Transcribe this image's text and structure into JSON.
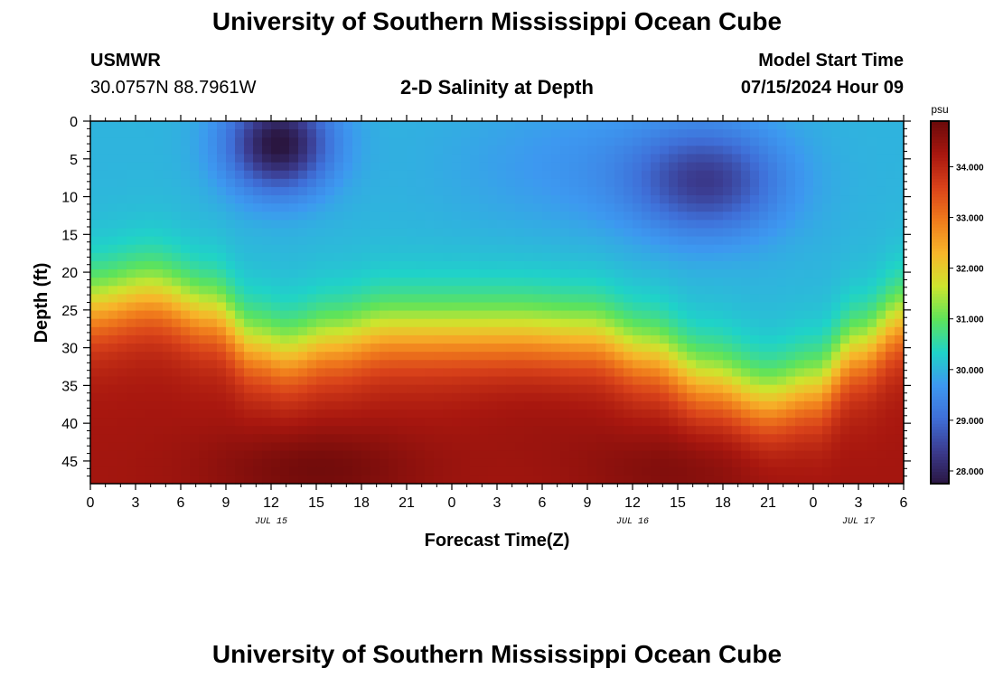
{
  "header": {
    "title": "University of Southern Mississippi Ocean Cube",
    "station": "USMWR",
    "coords": "30.0757N  88.7961W",
    "chart_title": "2-D Salinity at Depth",
    "model_start_label": "Model Start Time",
    "model_start_time": "07/15/2024 Hour 09"
  },
  "footer": {
    "title": "University of Southern Mississippi Ocean Cube"
  },
  "chart_data": {
    "type": "heatmap",
    "title": "2-D Salinity at Depth",
    "xlabel": "Forecast Time(Z)",
    "ylabel": "Depth (ft)",
    "x_tick_labels": [
      "0",
      "3",
      "6",
      "9",
      "12",
      "15",
      "18",
      "21",
      "0",
      "3",
      "6",
      "9",
      "12",
      "15",
      "18",
      "21",
      "0",
      "3",
      "6"
    ],
    "x_hours_from_jul15_00z": [
      0,
      3,
      6,
      9,
      12,
      15,
      18,
      21,
      24,
      27,
      30,
      33,
      36,
      39,
      42,
      45,
      48,
      51,
      54
    ],
    "date_labels": [
      {
        "text": "JUL 15",
        "hour": 12
      },
      {
        "text": "JUL 16",
        "hour": 36
      },
      {
        "text": "JUL 17",
        "hour": 51
      }
    ],
    "y_ticks": [
      0,
      5,
      10,
      15,
      20,
      25,
      30,
      35,
      40,
      45
    ],
    "ylim": [
      0,
      48
    ],
    "xlim": [
      0,
      54
    ],
    "y_inverted": true,
    "colorbar": {
      "unit": "psu",
      "ticks": [
        "28.000",
        "29.000",
        "30.000",
        "31.000",
        "32.000",
        "33.000",
        "34.000"
      ],
      "tick_values": [
        28,
        29,
        30,
        31,
        32,
        33,
        34
      ],
      "range": [
        27.75,
        34.9
      ],
      "colors": [
        "#2a1640",
        "#3b3b8f",
        "#3f6fd8",
        "#3d98f0",
        "#1fd3c8",
        "#5ee35a",
        "#cde52e",
        "#f7b62a",
        "#f07b1c",
        "#d9421a",
        "#a8170f",
        "#6b0a0a"
      ]
    },
    "field_description_points_psu": {
      "surface_low_centers": [
        {
          "hour": 12.5,
          "depth": 3,
          "value": 27.8
        },
        {
          "hour": 41,
          "depth": 8,
          "value": 28.5
        }
      ],
      "near_surface_typical": 30.0,
      "bottom_high_centers": [
        {
          "hour": 15,
          "depth": 46,
          "value": 34.8
        },
        {
          "hour": 39,
          "depth": 46,
          "value": 34.6
        }
      ]
    }
  }
}
